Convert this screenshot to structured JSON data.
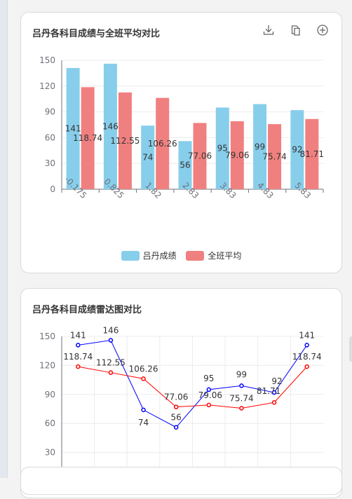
{
  "bar_card": {
    "title": "吕丹各科目成绩与全班平均对比",
    "toolbox": [
      "download-icon",
      "copy-icon",
      "zoom-in-icon"
    ]
  },
  "radar_card": {
    "title": "吕丹各科目成绩雷达图对比"
  },
  "colors": {
    "student_bar": "#87ceeb",
    "average_bar": "#f08080",
    "student_line": "#0000ff",
    "average_line": "#ff0000"
  },
  "chart_data": [
    {
      "type": "bar",
      "categories": [
        "-0.175",
        "0.825",
        "1.82",
        "2.83",
        "3.83",
        "4.83",
        "5.83"
      ],
      "series": [
        {
          "name": "吕丹成绩",
          "values": [
            141,
            146,
            74,
            56,
            95,
            99,
            92
          ],
          "labels": [
            "141",
            "146",
            "74",
            "56",
            "95",
            "99",
            "92"
          ]
        },
        {
          "name": "全班平均",
          "values": [
            118.74,
            112.55,
            106.26,
            77.06,
            79.06,
            75.74,
            81.71
          ],
          "labels": [
            "118.74",
            "112.55",
            "106.26",
            "77.06",
            "79.06",
            "75.74",
            "81.71"
          ]
        }
      ],
      "yticks": [
        "0",
        "30",
        "60",
        "90",
        "120",
        "150"
      ],
      "ylim": [
        0,
        150
      ],
      "legend": "bottom-center"
    },
    {
      "type": "line",
      "series": [
        {
          "values": [
            141,
            146,
            74,
            56,
            95,
            99,
            92,
            141
          ],
          "labels": [
            "141",
            "146",
            "74",
            "56",
            "95",
            "99",
            "92",
            "141"
          ]
        },
        {
          "values": [
            118.74,
            112.55,
            106.26,
            77.06,
            79.06,
            75.74,
            81.71,
            118.74
          ],
          "labels": [
            "118.74",
            "112.55",
            "106.26",
            "77.06",
            "79.06",
            "75.74",
            "81.71",
            "118.74"
          ]
        }
      ],
      "yticks": [
        "30",
        "60",
        "90",
        "120",
        "150"
      ],
      "ylim": [
        0,
        150
      ]
    }
  ]
}
